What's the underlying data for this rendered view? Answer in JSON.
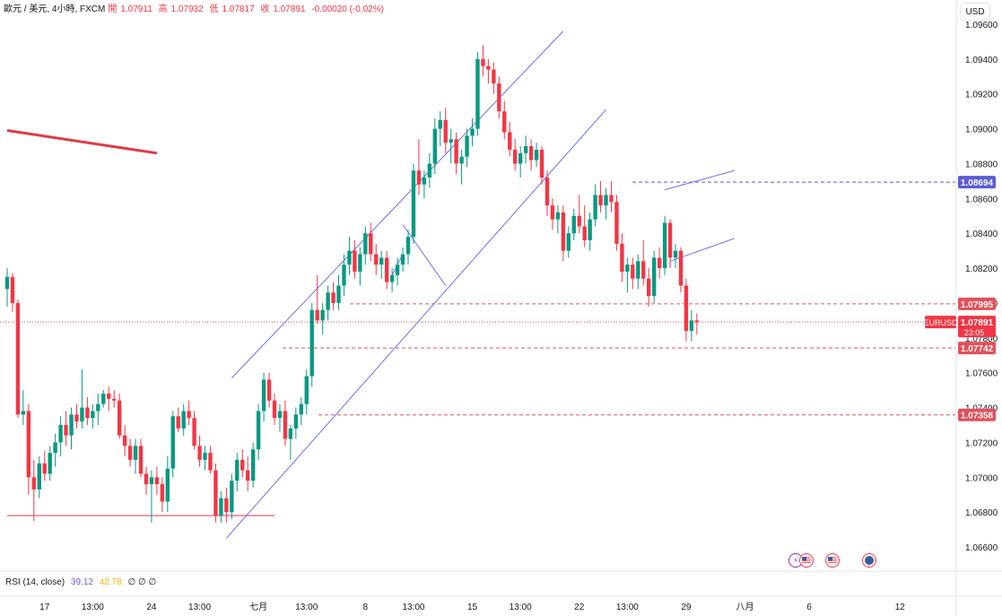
{
  "header": {
    "symbol_title": "歐元 / 美元, 4小時, FXCM",
    "open_label": "開",
    "open_value": "1.07911",
    "high_label": "高",
    "high_value": "1.07932",
    "low_label": "低",
    "low_value": "1.07817",
    "close_label": "收",
    "close_value": "1.07891",
    "change": "-0.00020 (-0.02%)",
    "currency_button": "USD"
  },
  "rsi": {
    "label": "RSI (14, close)",
    "value1": "39.12",
    "value2": "42.78",
    "value3": "∅ ∅ ∅"
  },
  "events": {
    "a_icon": "lightning-icon",
    "b_icon": "us-flag-icon",
    "c_icon": "us-flag-icon",
    "d_icon": "globe-icon"
  },
  "chart_data": {
    "type": "candlestick",
    "symbol": "EURUSD",
    "timeframe": "4小時",
    "ylim": [
      1.0654,
      1.0962
    ],
    "y_ticks": [
      "1.09600",
      "1.09400",
      "1.09200",
      "1.09000",
      "1.08800",
      "1.08600",
      "1.08400",
      "1.08200",
      "1.08000",
      "1.07800",
      "1.07600",
      "1.07400",
      "1.07200",
      "1.07000",
      "1.06800",
      "1.06600"
    ],
    "x_ticks": [
      {
        "label": "17",
        "bar": 7
      },
      {
        "label": "13:00",
        "bar": 16
      },
      {
        "label": "24",
        "bar": 27
      },
      {
        "label": "13:00",
        "bar": 36
      },
      {
        "label": "七月",
        "bar": 47
      },
      {
        "label": "13:00",
        "bar": 56
      },
      {
        "label": "8",
        "bar": 67
      },
      {
        "label": "13:00",
        "bar": 76
      },
      {
        "label": "15",
        "bar": 87
      },
      {
        "label": "13:00",
        "bar": 96
      },
      {
        "label": "22",
        "bar": 107
      },
      {
        "label": "13:00",
        "bar": 116
      },
      {
        "label": "29",
        "bar": 127
      },
      {
        "label": "八月",
        "bar": 138
      },
      {
        "label": "6",
        "bar": 150
      },
      {
        "label": "12",
        "bar": 167
      }
    ],
    "price_labels": [
      {
        "label": "1.08694",
        "price": 1.08694,
        "color": "#5b5bd6",
        "style": "dashed"
      },
      {
        "label": "1.07995",
        "price": 1.07995,
        "color": "#e3505a",
        "style": "dashed"
      },
      {
        "label": "1.07742",
        "price": 1.07742,
        "color": "#e3505a",
        "style": "dashed"
      },
      {
        "label": "1.07358",
        "price": 1.07358,
        "color": "#e3505a",
        "style": "dashed"
      }
    ],
    "current_price": {
      "symbol": "EURUSD",
      "value": "1.07891",
      "countdown": "23:05",
      "price": 1.07891
    },
    "candles": [
      [
        1.0808,
        1.082,
        1.0798,
        1.0815
      ],
      [
        1.0815,
        1.0817,
        1.0795,
        1.08
      ],
      [
        1.08,
        1.0802,
        1.0734,
        1.0736
      ],
      [
        1.0736,
        1.075,
        1.073,
        1.0738
      ],
      [
        1.0738,
        1.0742,
        1.069,
        1.07
      ],
      [
        1.07,
        1.071,
        1.0675,
        1.0693
      ],
      [
        1.0693,
        1.0712,
        1.0688,
        1.0708
      ],
      [
        1.0708,
        1.0715,
        1.0698,
        1.0702
      ],
      [
        1.0702,
        1.0718,
        1.0698,
        1.0714
      ],
      [
        1.0714,
        1.0725,
        1.0706,
        1.072
      ],
      [
        1.072,
        1.0735,
        1.0712,
        1.073
      ],
      [
        1.073,
        1.0738,
        1.0718,
        1.0724
      ],
      [
        1.0724,
        1.074,
        1.0716,
        1.0736
      ],
      [
        1.0736,
        1.0742,
        1.0728,
        1.0732
      ],
      [
        1.0732,
        1.0762,
        1.0728,
        1.074
      ],
      [
        1.074,
        1.0746,
        1.073,
        1.0734
      ],
      [
        1.0734,
        1.0742,
        1.0728,
        1.0738
      ],
      [
        1.0738,
        1.0748,
        1.073,
        1.0742
      ],
      [
        1.0742,
        1.075,
        1.074,
        1.0748
      ],
      [
        1.0748,
        1.0752,
        1.0738,
        1.0745
      ],
      [
        1.0745,
        1.075,
        1.074,
        1.0744
      ],
      [
        1.0744,
        1.0748,
        1.0722,
        1.0724
      ],
      [
        1.0724,
        1.073,
        1.0712,
        1.0718
      ],
      [
        1.0718,
        1.0722,
        1.0706,
        1.071
      ],
      [
        1.071,
        1.0722,
        1.0702,
        1.0718
      ],
      [
        1.0718,
        1.0722,
        1.07,
        1.0702
      ],
      [
        1.0702,
        1.0706,
        1.069,
        1.0696
      ],
      [
        1.0696,
        1.0704,
        1.0674,
        1.07
      ],
      [
        1.07,
        1.0706,
        1.069,
        1.0696
      ],
      [
        1.0696,
        1.07,
        1.068,
        1.0686
      ],
      [
        1.0686,
        1.0712,
        1.068,
        1.0705
      ],
      [
        1.0705,
        1.0738,
        1.07,
        1.0735
      ],
      [
        1.0735,
        1.074,
        1.0726,
        1.0728
      ],
      [
        1.0728,
        1.0742,
        1.0724,
        1.0738
      ],
      [
        1.0738,
        1.0744,
        1.073,
        1.0734
      ],
      [
        1.0734,
        1.0738,
        1.0716,
        1.0718
      ],
      [
        1.0718,
        1.0724,
        1.0706,
        1.071
      ],
      [
        1.071,
        1.0718,
        1.0704,
        1.0714
      ],
      [
        1.0714,
        1.0718,
        1.0702,
        1.0704
      ],
      [
        1.0704,
        1.0708,
        1.0674,
        1.0678
      ],
      [
        1.0678,
        1.0692,
        1.0674,
        1.0688
      ],
      [
        1.0688,
        1.0694,
        1.0674,
        1.068
      ],
      [
        1.068,
        1.0702,
        1.0676,
        1.0698
      ],
      [
        1.0698,
        1.0714,
        1.0692,
        1.071
      ],
      [
        1.071,
        1.0716,
        1.07,
        1.0704
      ],
      [
        1.0704,
        1.0712,
        1.0692,
        1.0698
      ],
      [
        1.0698,
        1.072,
        1.0694,
        1.0716
      ],
      [
        1.0716,
        1.0742,
        1.071,
        1.0738
      ],
      [
        1.0738,
        1.076,
        1.0732,
        1.0756
      ],
      [
        1.0756,
        1.076,
        1.074,
        1.0744
      ],
      [
        1.0744,
        1.0748,
        1.073,
        1.0734
      ],
      [
        1.0734,
        1.0742,
        1.0726,
        1.0738
      ],
      [
        1.0738,
        1.0744,
        1.0718,
        1.0722
      ],
      [
        1.0722,
        1.073,
        1.071,
        1.0728
      ],
      [
        1.0728,
        1.074,
        1.0722,
        1.0736
      ],
      [
        1.0736,
        1.0746,
        1.073,
        1.0742
      ],
      [
        1.0742,
        1.0762,
        1.0736,
        1.0758
      ],
      [
        1.0758,
        1.08,
        1.0752,
        1.0796
      ],
      [
        1.0796,
        1.0816,
        1.0788,
        1.079
      ],
      [
        1.079,
        1.08,
        1.0782,
        1.0796
      ],
      [
        1.0796,
        1.081,
        1.079,
        1.0806
      ],
      [
        1.0806,
        1.0812,
        1.0796,
        1.08
      ],
      [
        1.08,
        1.0816,
        1.0796,
        1.081
      ],
      [
        1.081,
        1.0828,
        1.0804,
        1.0822
      ],
      [
        1.0822,
        1.0838,
        1.0816,
        1.083
      ],
      [
        1.083,
        1.0836,
        1.0814,
        1.0818
      ],
      [
        1.0818,
        1.0832,
        1.081,
        1.0828
      ],
      [
        1.0828,
        1.0844,
        1.0822,
        1.084
      ],
      [
        1.084,
        1.0846,
        1.0824,
        1.0828
      ],
      [
        1.0828,
        1.0834,
        1.0816,
        1.0822
      ],
      [
        1.0822,
        1.083,
        1.0814,
        1.0826
      ],
      [
        1.0826,
        1.083,
        1.0808,
        1.0812
      ],
      [
        1.0812,
        1.082,
        1.0806,
        1.0816
      ],
      [
        1.0816,
        1.0826,
        1.081,
        1.0822
      ],
      [
        1.0822,
        1.0832,
        1.0818,
        1.0828
      ],
      [
        1.0828,
        1.0842,
        1.0822,
        1.0838
      ],
      [
        1.0838,
        1.088,
        1.0834,
        1.0876
      ],
      [
        1.0876,
        1.0894,
        1.0862,
        1.0868
      ],
      [
        1.0868,
        1.0876,
        1.086,
        1.0872
      ],
      [
        1.0872,
        1.0886,
        1.0866,
        1.088
      ],
      [
        1.088,
        1.0906,
        1.0874,
        1.09
      ],
      [
        1.09,
        1.091,
        1.089,
        1.0905
      ],
      [
        1.0905,
        1.0912,
        1.0886,
        1.0892
      ],
      [
        1.0892,
        1.09,
        1.088,
        1.0894
      ],
      [
        1.0894,
        1.0898,
        1.0874,
        1.088
      ],
      [
        1.088,
        1.0888,
        1.0868,
        1.0884
      ],
      [
        1.0884,
        1.09,
        1.0878,
        1.0896
      ],
      [
        1.0896,
        1.0906,
        1.089,
        1.09
      ],
      [
        1.09,
        1.0944,
        1.0896,
        1.094
      ],
      [
        1.094,
        1.0948,
        1.093,
        1.0936
      ],
      [
        1.0936,
        1.094,
        1.0926,
        1.0934
      ],
      [
        1.0934,
        1.0938,
        1.092,
        1.0926
      ],
      [
        1.0926,
        1.093,
        1.0906,
        1.091
      ],
      [
        1.091,
        1.0916,
        1.0894,
        1.0898
      ],
      [
        1.0898,
        1.0904,
        1.0884,
        1.0888
      ],
      [
        1.0888,
        1.0894,
        1.0876,
        1.088
      ],
      [
        1.088,
        1.089,
        1.0872,
        1.0886
      ],
      [
        1.0886,
        1.0896,
        1.088,
        1.089
      ],
      [
        1.089,
        1.0894,
        1.0876,
        1.0882
      ],
      [
        1.0882,
        1.0892,
        1.0878,
        1.0888
      ],
      [
        1.0888,
        1.089,
        1.0868,
        1.0872
      ],
      [
        1.0872,
        1.0876,
        1.085,
        1.0856
      ],
      [
        1.0856,
        1.086,
        1.0842,
        1.0848
      ],
      [
        1.0848,
        1.0856,
        1.084,
        1.0852
      ],
      [
        1.0852,
        1.0856,
        1.0824,
        1.083
      ],
      [
        1.083,
        1.0844,
        1.0826,
        1.084
      ],
      [
        1.084,
        1.0854,
        1.0836,
        1.085
      ],
      [
        1.085,
        1.0862,
        1.084,
        1.0844
      ],
      [
        1.0844,
        1.0856,
        1.0832,
        1.0836
      ],
      [
        1.0836,
        1.0852,
        1.083,
        1.0848
      ],
      [
        1.0848,
        1.0868,
        1.0844,
        1.0862
      ],
      [
        1.0862,
        1.087,
        1.0852,
        1.0856
      ],
      [
        1.0856,
        1.0866,
        1.0848,
        1.0862
      ],
      [
        1.0862,
        1.087,
        1.0852,
        1.0858
      ],
      [
        1.0858,
        1.0862,
        1.083,
        1.0834
      ],
      [
        1.0834,
        1.084,
        1.0812,
        1.0818
      ],
      [
        1.0818,
        1.0826,
        1.0806,
        1.0822
      ],
      [
        1.0822,
        1.0826,
        1.0808,
        1.0814
      ],
      [
        1.0814,
        1.0828,
        1.0808,
        1.0824
      ],
      [
        1.0824,
        1.0836,
        1.081,
        1.0814
      ],
      [
        1.0814,
        1.082,
        1.0798,
        1.0804
      ],
      [
        1.0804,
        1.083,
        1.08,
        1.0826
      ],
      [
        1.0826,
        1.0832,
        1.0814,
        1.082
      ],
      [
        1.082,
        1.085,
        1.0816,
        1.0846
      ],
      [
        1.0846,
        1.0848,
        1.082,
        1.0826
      ],
      [
        1.0826,
        1.0834,
        1.082,
        1.083
      ],
      [
        1.083,
        1.0832,
        1.0806,
        1.081
      ],
      [
        1.081,
        1.0814,
        1.0778,
        1.0784
      ],
      [
        1.0784,
        1.0796,
        1.0778,
        1.079
      ],
      [
        1.079,
        1.0794,
        1.0782,
        1.0789
      ]
    ],
    "drawings": [
      {
        "type": "trendline",
        "color": "#e03a45",
        "from": {
          "bar": 0,
          "price": 1.0899
        },
        "to": {
          "bar": 28,
          "price": 1.0886
        }
      },
      {
        "type": "horizontal_segment",
        "color": "#e03a45",
        "from": {
          "bar": 0,
          "price": 1.0678
        },
        "to": {
          "bar": 50,
          "price": 1.0678
        }
      },
      {
        "type": "channel_line",
        "color": "#6e6ef0",
        "from": {
          "bar": 42,
          "price": 1.0757
        },
        "to": {
          "bar": 104,
          "price": 1.0956
        }
      },
      {
        "type": "channel_line",
        "color": "#6e6ef0",
        "from": {
          "bar": 41,
          "price": 1.0665
        },
        "to": {
          "bar": 112,
          "price": 1.0911
        }
      },
      {
        "type": "trendline",
        "color": "#6e6ef0",
        "from": {
          "bar": 74,
          "price": 1.0845
        },
        "to": {
          "bar": 82,
          "price": 1.081
        }
      },
      {
        "type": "trendline",
        "color": "#6e6ef0",
        "from": {
          "bar": 72,
          "price": 1.0816
        },
        "to": {
          "bar": 74,
          "price": 1.0828
        }
      },
      {
        "type": "trendline",
        "color": "#6e6ef0",
        "from": {
          "bar": 123,
          "price": 1.0865
        },
        "to": {
          "bar": 136,
          "price": 1.0876
        }
      },
      {
        "type": "trendline",
        "color": "#6e6ef0",
        "from": {
          "bar": 124,
          "price": 1.0824
        },
        "to": {
          "bar": 136,
          "price": 1.0837
        }
      }
    ]
  }
}
